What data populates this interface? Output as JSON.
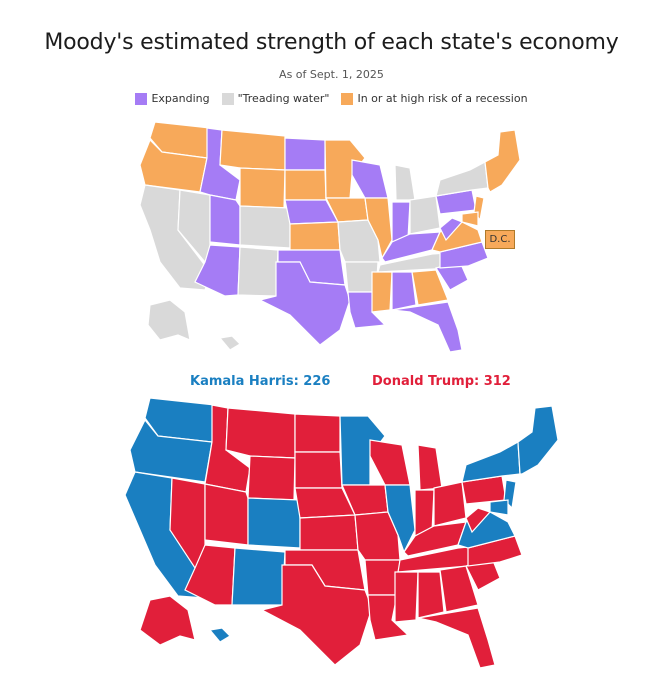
{
  "title": "Moody's estimated strength of each state's economy",
  "subtitle": "As of Sept. 1, 2025",
  "legend": [
    {
      "label": "Expanding",
      "color": "#a57cf5"
    },
    {
      "label": "\"Treading water\"",
      "color": "#d9d9d9"
    },
    {
      "label": "In or at high risk of a recession",
      "color": "#f7a95a"
    }
  ],
  "dc_label": "D.C.",
  "election": {
    "harris_label": "Kamala Harris: 226",
    "harris_color": "#1a7fc1",
    "trump_label": "Donald Trump: 312",
    "trump_color": "#e11f3a"
  },
  "colors": {
    "expanding": "#a57cf5",
    "treading": "#d9d9d9",
    "recession": "#f7a95a",
    "harris": "#1a7fc1",
    "trump": "#e11f3a",
    "border": "#ffffff"
  }
}
